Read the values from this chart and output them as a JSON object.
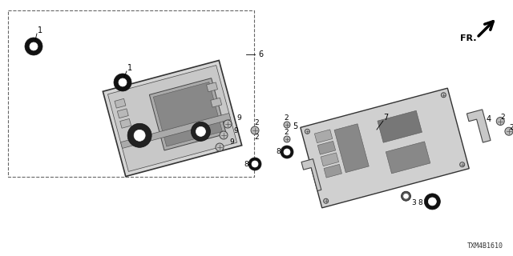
{
  "bg_color": "#ffffff",
  "fig_width": 6.4,
  "fig_height": 3.2,
  "dpi": 100,
  "diagram_code": "TXM4B1610",
  "fr_label": "FR."
}
